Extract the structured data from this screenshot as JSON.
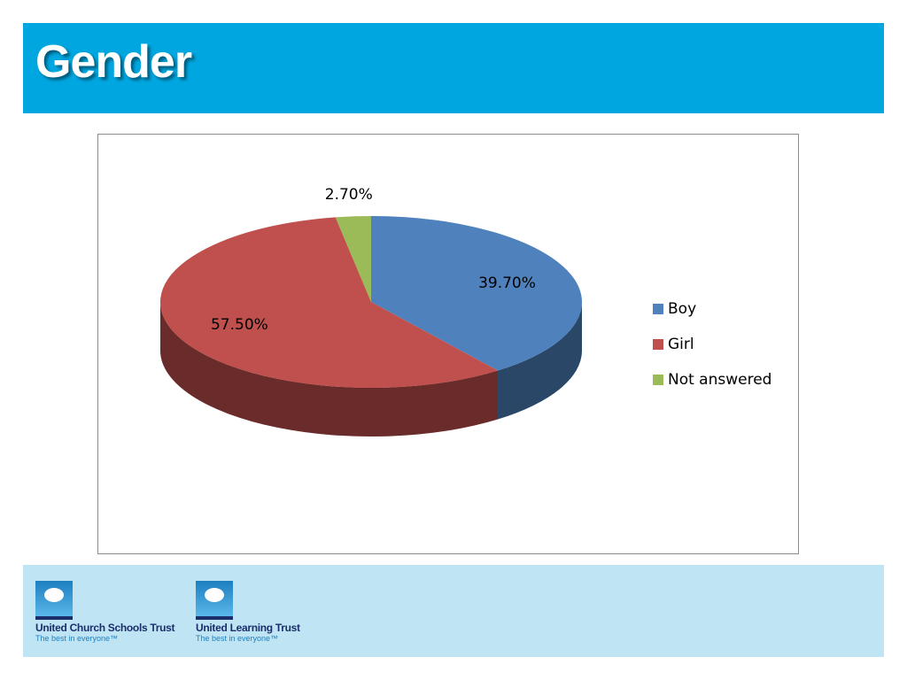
{
  "slide": {
    "title": "Gender",
    "logos": [
      {
        "name": "United Church Schools Trust",
        "tagline": "The best in everyone™"
      },
      {
        "name": "United Learning Trust",
        "tagline": "The best in everyone™"
      }
    ]
  },
  "chart_data": {
    "type": "pie",
    "categories": [
      "Boy",
      "Girl",
      "Not answered"
    ],
    "values": [
      39.7,
      57.5,
      2.7
    ],
    "value_labels": [
      "39.70%",
      "57.50%",
      "2.70%"
    ],
    "colors": [
      "#4f81bd",
      "#c0504d",
      "#9bbb59"
    ],
    "legend": "right"
  }
}
